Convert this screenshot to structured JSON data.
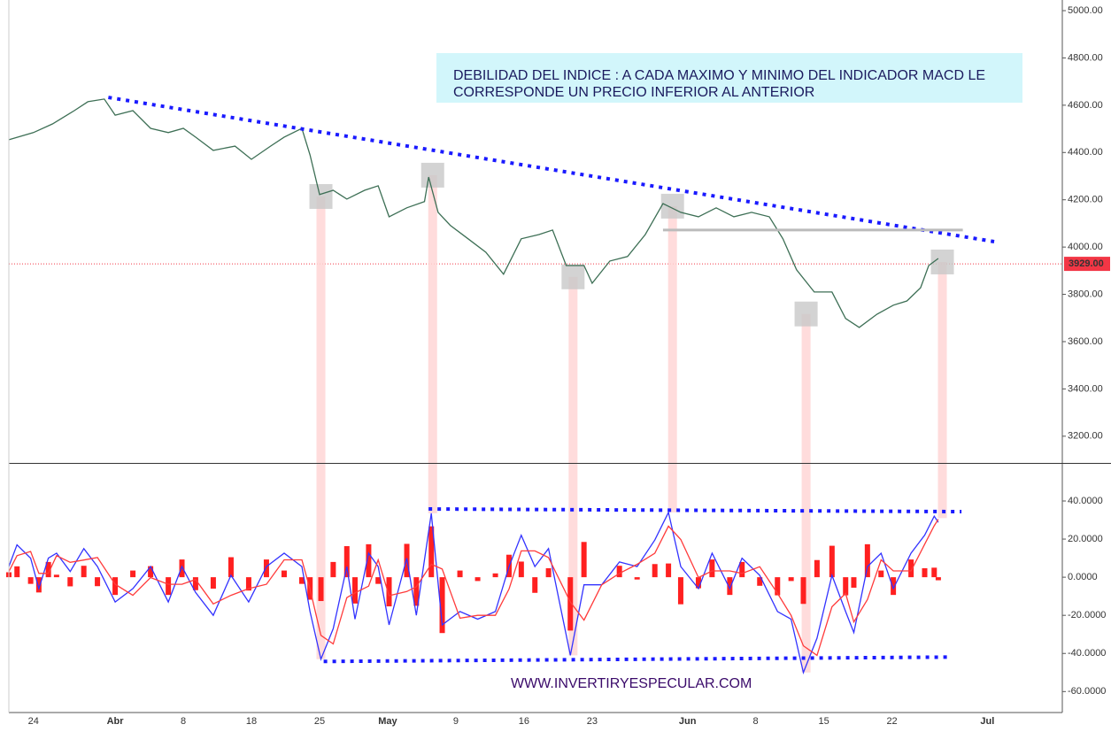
{
  "chart_data": [
    {
      "type": "line",
      "annotation": [
        "DEBILIDAD DEL INDICE : A CADA MAXIMO Y MINIMO DEL INDICADOR MACD LE",
        "CORRESPONDE UN PRECIO INFERIOR AL ANTERIOR"
      ],
      "x": [
        -1.8,
        0,
        1.4,
        3,
        4,
        5.2,
        6,
        7.3,
        8.6,
        9.9,
        11,
        11.9,
        13.2,
        14.8,
        16,
        17.4,
        18.4,
        19.7,
        20.3,
        21,
        22,
        23,
        24.3,
        25.3,
        26.1,
        27.4,
        28.7,
        29,
        29.7,
        30.6,
        31.9,
        33.2,
        34.5,
        35.8,
        37.1,
        38.1,
        39.1,
        40.4,
        41,
        42.3,
        43.6,
        44.9,
        46.2,
        47.5,
        48.8,
        50.1,
        51.4,
        52.7,
        54,
        55,
        56,
        57.3,
        58.6,
        59.6,
        60.6,
        61.9,
        63.1,
        64.1,
        65.1,
        65.7,
        66.4
      ],
      "series": [
        {
          "color": "#3d6f55",
          "values": [
            4454,
            4484,
            4521,
            4577,
            4615,
            4626,
            4558,
            4577,
            4502,
            4484,
            4502,
            4465,
            4409,
            4427,
            4371,
            4427,
            4465,
            4502,
            4390,
            4222,
            4240,
            4203,
            4240,
            4259,
            4128,
            4166,
            4192,
            4296,
            4147,
            4091,
            4035,
            3978,
            3885,
            4035,
            4053,
            4072,
            3922,
            3922,
            3847,
            3941,
            3960,
            4053,
            4184,
            4147,
            4128,
            4166,
            4128,
            4147,
            4128,
            4035,
            3904,
            3810,
            3810,
            3698,
            3660,
            3716,
            3754,
            3772,
            3828,
            3922,
            3952
          ]
        }
      ],
      "last_price": {
        "value": 3929,
        "label": "3929.00"
      },
      "last_price_color": "#f23645",
      "ylim": [
        3087,
        5045
      ],
      "yticks": [
        {
          "value": 3200,
          "label": "3200.00"
        },
        {
          "value": 3400,
          "label": "3400.00"
        },
        {
          "value": 3600,
          "label": "3600.00"
        },
        {
          "value": 3800,
          "label": "3800.00"
        },
        {
          "value": 4000,
          "label": "4000.00"
        },
        {
          "value": 4200,
          "label": "4200.00"
        },
        {
          "value": 4400,
          "label": "4400.00"
        },
        {
          "value": 4600,
          "label": "4600.00"
        },
        {
          "value": 4800,
          "label": "4800.00"
        },
        {
          "value": 5000,
          "label": "5000.00"
        }
      ],
      "grid": true,
      "trendlines": [
        {
          "x": [
            5.5,
            70.5
          ],
          "y": [
            4633,
            4023
          ],
          "color": "#1a1aff",
          "style": "dotted"
        },
        {
          "x": [
            46.2,
            68.2
          ],
          "y": [
            4072,
            4072
          ],
          "color": "#bbbbbb",
          "style": "solid"
        }
      ],
      "highlights": [
        {
          "x": 21.1,
          "price": 4214,
          "macd": -43
        },
        {
          "x": 29.3,
          "price": 4304,
          "macd": 33.5
        },
        {
          "x": 39.6,
          "price": 3874,
          "macd": -41
        },
        {
          "x": 46.9,
          "price": 4173,
          "macd": 34
        },
        {
          "x": 56.7,
          "price": 3717,
          "macd": -50
        },
        {
          "x": 66.7,
          "price": 3937,
          "macd": 31
        }
      ]
    },
    {
      "type": "macd",
      "watermark": "WWW.INVERTIRYESPECULAR.COM",
      "x": [
        -1.8,
        -1.2,
        -0.2,
        0.4,
        1.1,
        1.7,
        2.7,
        3.7,
        4.7,
        6,
        7.3,
        8.6,
        9.9,
        10.9,
        11.9,
        13.2,
        14.5,
        15.8,
        17.1,
        18.4,
        19.7,
        20.3,
        21.1,
        22,
        23,
        23.6,
        24.6,
        25.3,
        26.1,
        27.4,
        28.1,
        29.2,
        30,
        31.3,
        32.6,
        33.9,
        34.9,
        35.8,
        36.8,
        37.8,
        39.4,
        40.4,
        41.7,
        43,
        44.3,
        45.6,
        46.6,
        47.5,
        48.8,
        49.8,
        51.1,
        52,
        53.3,
        54.6,
        55.6,
        56.5,
        57.5,
        58.6,
        59.6,
        60.2,
        61.2,
        62.2,
        63.1,
        64.4,
        65.4,
        66.1,
        66.4
      ],
      "series": [
        {
          "color": "#3333ff",
          "values": [
            5.6,
            17,
            10,
            -6,
            10,
            12.6,
            3,
            15,
            5.6,
            -13,
            -6,
            5.6,
            -13,
            5.6,
            -8,
            -20,
            1,
            -13,
            5.6,
            12.6,
            5.6,
            -18,
            -43,
            -27,
            5.6,
            -22,
            12.6,
            5.6,
            -25,
            10,
            -20,
            33.5,
            -25,
            -18,
            -22,
            -18,
            5.6,
            22,
            5.6,
            15,
            -41,
            -4,
            -4,
            8,
            5.6,
            19.5,
            34,
            5.6,
            -6,
            12.6,
            -6,
            10,
            1,
            -18,
            -22,
            -50,
            -32,
            1,
            -18,
            -29,
            5.6,
            12.6,
            -6,
            12.6,
            22,
            32,
            28.8
          ]
        },
        {
          "color": "#ff3b3b",
          "values": [
            3,
            11.3,
            13.5,
            2,
            2,
            11.3,
            7.8,
            9,
            10.3,
            -3.7,
            -9.5,
            -0.2,
            -3.7,
            -3.7,
            -1.2,
            -14,
            -9.5,
            -6,
            -3.7,
            9.1,
            9.1,
            -6.2,
            -30.5,
            -35,
            -10.7,
            -8.2,
            -4.7,
            9.1,
            -9.7,
            -7.5,
            -5,
            6.8,
            4.3,
            -21.5,
            -20,
            -20,
            -6.2,
            13.8,
            13.8,
            10.3,
            -13,
            -22.5,
            -4,
            2,
            6.8,
            12.6,
            26.8,
            19.8,
            -0.2,
            3.3,
            3.3,
            2,
            5.5,
            -8.5,
            -20,
            -36,
            -41,
            -15.5,
            -8.5,
            -23.5,
            -11.7,
            9.1,
            3.3,
            3.3,
            17.3,
            27,
            30.4
          ]
        }
      ],
      "histogram": {
        "color": "#ff2020",
        "values": [
          2.6,
          5.7,
          -3.5,
          -8,
          8,
          1.3,
          -4.8,
          6,
          -4.7,
          -9.3,
          3.5,
          5.8,
          -9.3,
          9.3,
          -6.8,
          -6,
          10.5,
          -7,
          9.3,
          3.5,
          -3.5,
          -11.8,
          -12.5,
          8,
          16.3,
          -13.8,
          17.3,
          -3.5,
          -15.3,
          17.5,
          -15,
          26.7,
          -29.3,
          3.5,
          -2,
          2,
          11.8,
          8.2,
          -8.2,
          4.7,
          -28,
          18.5,
          0,
          6,
          -1.2,
          6.9,
          7.2,
          -14.2,
          -5.8,
          9.3,
          -9.3,
          8,
          -4.5,
          -9.5,
          -2,
          -14,
          9,
          16.5,
          -9.5,
          -5.5,
          17.3,
          3.5,
          -9.3,
          9.3,
          4.7,
          5,
          -1.6
        ]
      },
      "ylim": [
        -71,
        59.5
      ],
      "yticks": [
        {
          "value": -60,
          "label": "-60.0000"
        },
        {
          "value": -40,
          "label": "-40.0000"
        },
        {
          "value": -20,
          "label": "-20.0000"
        },
        {
          "value": 0,
          "label": "0.0000"
        },
        {
          "value": 20,
          "label": "20.0000"
        },
        {
          "value": 40,
          "label": "40.0000"
        }
      ],
      "grid": true,
      "xlim": [
        -1.8,
        75.5
      ],
      "xticks": [
        {
          "value": 0,
          "label": "24"
        },
        {
          "value": 6,
          "label": "Abr"
        },
        {
          "value": 11,
          "label": "8"
        },
        {
          "value": 16,
          "label": "18"
        },
        {
          "value": 21,
          "label": "25"
        },
        {
          "value": 26,
          "label": "May"
        },
        {
          "value": 31,
          "label": "9"
        },
        {
          "value": 36,
          "label": "16"
        },
        {
          "value": 41,
          "label": "23"
        },
        {
          "value": 48,
          "label": "Jun"
        },
        {
          "value": 53,
          "label": "8"
        },
        {
          "value": 58,
          "label": "15"
        },
        {
          "value": 63,
          "label": "22"
        },
        {
          "value": 70,
          "label": "Jul"
        }
      ],
      "trendlines": [
        {
          "x": [
            29,
            68.1
          ],
          "y": [
            35.8,
            34.4
          ],
          "color": "#1a1aff",
          "style": "dotted"
        },
        {
          "x": [
            21.3,
            67.4
          ],
          "y": [
            -44.2,
            -41.9
          ],
          "color": "#1a1aff",
          "style": "dotted"
        }
      ]
    }
  ]
}
